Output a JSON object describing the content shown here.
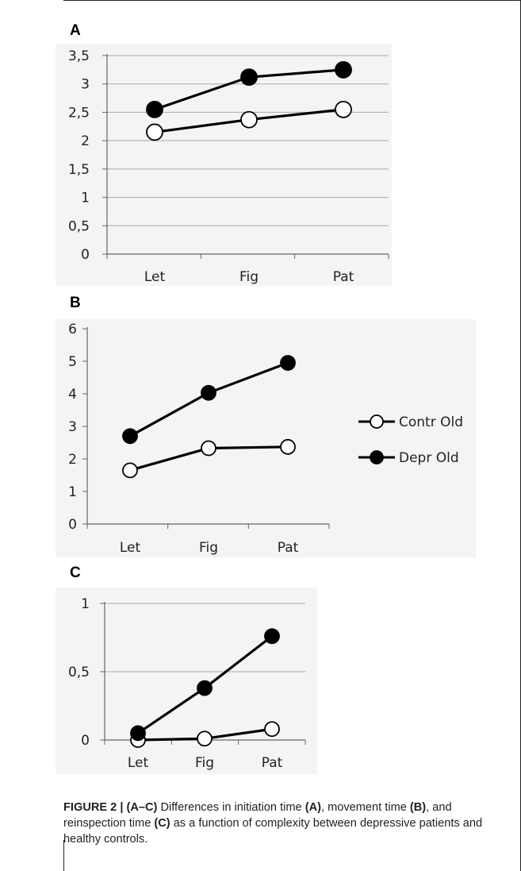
{
  "chart_data": [
    {
      "type": "line",
      "panel": "A",
      "categories": [
        "Let",
        "Fig",
        "Pat"
      ],
      "ylim": [
        0,
        3.5
      ],
      "yticks": [
        "0",
        "0,5",
        "1",
        "1,5",
        "2",
        "2,5",
        "3",
        "3,5"
      ],
      "grid": true,
      "series": [
        {
          "values": [
            2.15,
            2.37,
            2.55
          ],
          "marker": "open-circle"
        },
        {
          "values": [
            2.55,
            3.12,
            3.25
          ],
          "marker": "filled-circle"
        }
      ]
    },
    {
      "type": "line",
      "panel": "B",
      "categories": [
        "Let",
        "Fig",
        "Pat"
      ],
      "ylim": [
        0,
        6
      ],
      "yticks": [
        "0",
        "1",
        "2",
        "3",
        "4",
        "5",
        "6"
      ],
      "grid": false,
      "legend": "right",
      "series": [
        {
          "name": "Contr Old",
          "values": [
            1.65,
            2.33,
            2.37
          ],
          "marker": "open-circle"
        },
        {
          "name": "Depr Old",
          "values": [
            2.7,
            4.03,
            4.95
          ],
          "marker": "filled-circle"
        }
      ]
    },
    {
      "type": "line",
      "panel": "C",
      "categories": [
        "Let",
        "Fig",
        "Pat"
      ],
      "ylim": [
        0,
        1
      ],
      "yticks": [
        "0",
        "0,5",
        "1"
      ],
      "grid": true,
      "series": [
        {
          "values": [
            0.0,
            0.01,
            0.08
          ],
          "marker": "open-circle"
        },
        {
          "values": [
            0.05,
            0.38,
            0.76
          ],
          "marker": "filled-circle"
        }
      ]
    }
  ],
  "panel_labels": {
    "a": "A",
    "b": "B",
    "c": "C"
  },
  "caption": {
    "figure_label": "FIGURE 2 | (A–C)",
    "text_1": " Differences in initiation time ",
    "ref_a": "(A)",
    "text_2": ", movement time ",
    "ref_b": "(B)",
    "text_3": ", and reinspection time ",
    "ref_c": "(C)",
    "text_4": " as a function of complexity between depressive patients and healthy controls."
  }
}
